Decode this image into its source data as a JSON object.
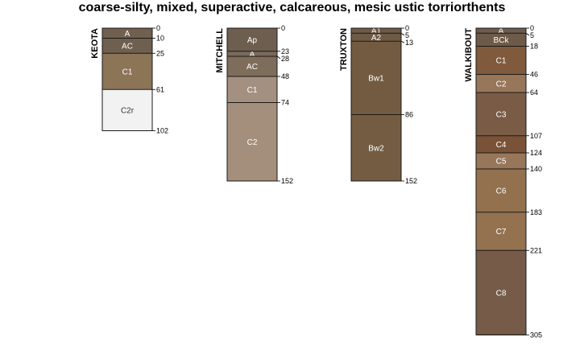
{
  "title": "coarse-silty, mixed, superactive, calcareous, mesic ustic torriorthents",
  "profiles": [
    {
      "name": "KEOTA",
      "horizons": [
        {
          "name": "A",
          "top": 0,
          "bottom": 10,
          "color": "#715f50"
        },
        {
          "name": "AC",
          "top": 10,
          "bottom": 25,
          "color": "#6f5f4f"
        },
        {
          "name": "C1",
          "top": 25,
          "bottom": 61,
          "color": "#8c7457"
        },
        {
          "name": "C2r",
          "top": 61,
          "bottom": 102,
          "color": "#f2f2f2"
        }
      ]
    },
    {
      "name": "MITCHELL",
      "horizons": [
        {
          "name": "Ap",
          "top": 0,
          "bottom": 23,
          "color": "#6e5e50"
        },
        {
          "name": "A",
          "top": 23,
          "bottom": 28,
          "color": "#7a6a5a"
        },
        {
          "name": "AC",
          "top": 28,
          "bottom": 48,
          "color": "#7f6d5b"
        },
        {
          "name": "C1",
          "top": 48,
          "bottom": 74,
          "color": "#a39080"
        },
        {
          "name": "C2",
          "top": 74,
          "bottom": 152,
          "color": "#a38f7c"
        }
      ]
    },
    {
      "name": "TRUXTON",
      "horizons": [
        {
          "name": "A1",
          "top": 0,
          "bottom": 5,
          "color": "#6e5a45"
        },
        {
          "name": "A2",
          "top": 5,
          "bottom": 13,
          "color": "#6e5a45"
        },
        {
          "name": "Bw1",
          "top": 13,
          "bottom": 86,
          "color": "#735b42"
        },
        {
          "name": "Bw2",
          "top": 86,
          "bottom": 152,
          "color": "#745c43"
        }
      ]
    },
    {
      "name": "WALKIBOUT",
      "horizons": [
        {
          "name": "A",
          "top": 0,
          "bottom": 5,
          "color": "#6d5c4e"
        },
        {
          "name": "BCk",
          "top": 5,
          "bottom": 18,
          "color": "#6e5a48"
        },
        {
          "name": "C1",
          "top": 18,
          "bottom": 46,
          "color": "#7f5a3c"
        },
        {
          "name": "C2",
          "top": 46,
          "bottom": 64,
          "color": "#987659"
        },
        {
          "name": "C3",
          "top": 64,
          "bottom": 107,
          "color": "#7a5c46"
        },
        {
          "name": "C4",
          "top": 107,
          "bottom": 124,
          "color": "#7a5237"
        },
        {
          "name": "C5",
          "top": 124,
          "bottom": 140,
          "color": "#97765a"
        },
        {
          "name": "C6",
          "top": 140,
          "bottom": 183,
          "color": "#93714f"
        },
        {
          "name": "C7",
          "top": 183,
          "bottom": 221,
          "color": "#94714f"
        },
        {
          "name": "C8",
          "top": 221,
          "bottom": 305,
          "color": "#765c48"
        }
      ]
    }
  ]
}
